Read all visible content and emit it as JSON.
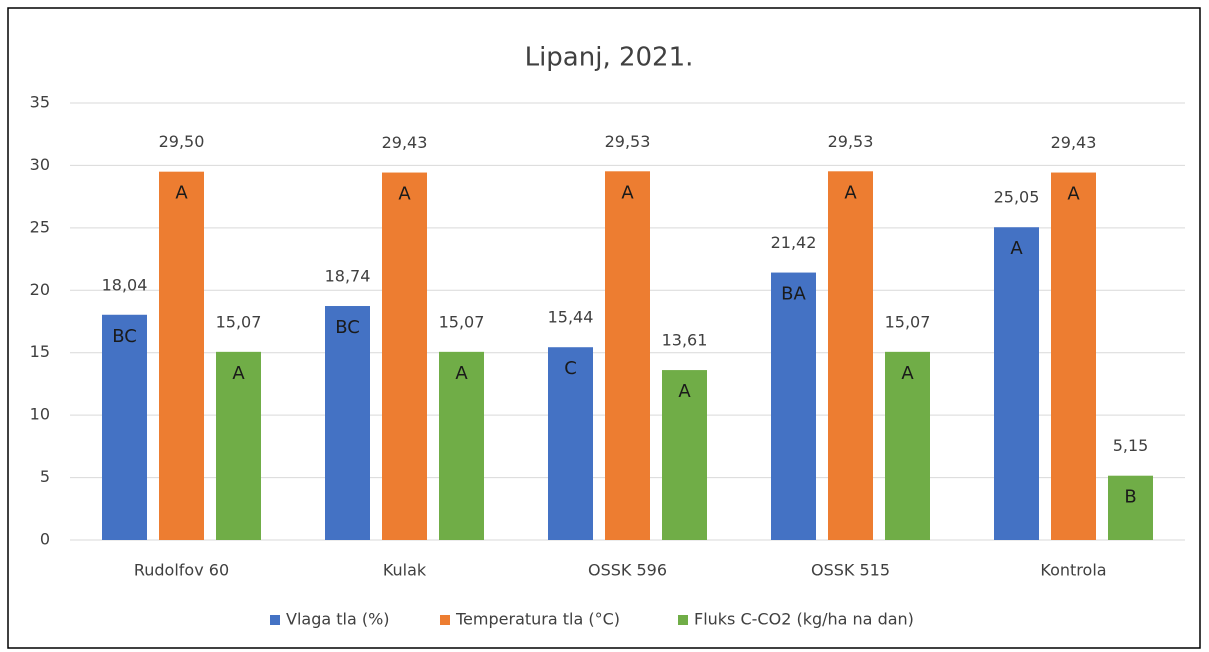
{
  "chart_data": {
    "type": "bar",
    "title": "Lipanj, 2021.",
    "categories": [
      "Rudolfov 60",
      "Kulak",
      "OSSK 596",
      "OSSK 515",
      "Kontrola"
    ],
    "series": [
      {
        "name": "Vlaga tla (%)",
        "color": "#4472c4",
        "values": [
          18.04,
          18.74,
          15.44,
          21.42,
          25.05
        ],
        "value_labels": [
          "18,04",
          "18,74",
          "15,44",
          "21,42",
          "25,05"
        ],
        "annotations": [
          "BC",
          "BC",
          "C",
          "BA",
          "A"
        ]
      },
      {
        "name": "Temperatura tla (°C)",
        "color": "#ed7d31",
        "values": [
          29.5,
          29.43,
          29.53,
          29.53,
          29.43
        ],
        "value_labels": [
          "29,50",
          "29,43",
          "29,53",
          "29,53",
          "29,43"
        ],
        "annotations": [
          "A",
          "A",
          "A",
          "A",
          "A"
        ]
      },
      {
        "name": "Fluks C-CO2 (kg/ha na dan)",
        "color": "#70ad47",
        "values": [
          15.07,
          15.07,
          13.61,
          15.07,
          5.15
        ],
        "value_labels": [
          "15,07",
          "15,07",
          "13,61",
          "15,07",
          "5,15"
        ],
        "annotations": [
          "A",
          "A",
          "A",
          "A",
          "B"
        ]
      }
    ],
    "ylim": [
      0,
      35
    ],
    "yticks": [
      0,
      5,
      10,
      15,
      20,
      25,
      30,
      35
    ],
    "grid": true,
    "legend": "bottom"
  }
}
